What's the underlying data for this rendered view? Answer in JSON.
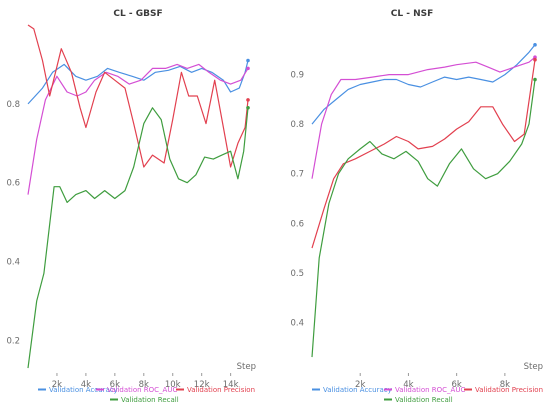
{
  "chart_data": [
    {
      "type": "line",
      "title": "CL - GBSF",
      "xlabel": "Step",
      "ylabel": "",
      "xlim": [
        0,
        15200
      ],
      "ylim": [
        0.12,
        1.0
      ],
      "xticks": [
        2000,
        4000,
        6000,
        8000,
        10000,
        12000,
        14000
      ],
      "xtick_labels": [
        "2k",
        "4k",
        "6k",
        "8k",
        "10k",
        "12k",
        "14k"
      ],
      "yticks": [
        0.2,
        0.4,
        0.6,
        0.8
      ],
      "ytick_labels": [
        "0.2",
        "0.4",
        "0.6",
        "0.8"
      ],
      "grid": false,
      "legend_position": "bottom",
      "series": [
        {
          "name": "Validation Accuracy",
          "color": "#4a90e2",
          "points": [
            [
              0,
              0.8
            ],
            [
              1000,
              0.84
            ],
            [
              1700,
              0.88
            ],
            [
              2500,
              0.9
            ],
            [
              3300,
              0.87
            ],
            [
              4000,
              0.86
            ],
            [
              4800,
              0.87
            ],
            [
              5500,
              0.89
            ],
            [
              6300,
              0.88
            ],
            [
              7200,
              0.87
            ],
            [
              8000,
              0.86
            ],
            [
              8800,
              0.88
            ],
            [
              9700,
              0.885
            ],
            [
              10500,
              0.895
            ],
            [
              11300,
              0.88
            ],
            [
              12000,
              0.89
            ],
            [
              12700,
              0.88
            ],
            [
              13500,
              0.86
            ],
            [
              14000,
              0.83
            ],
            [
              14600,
              0.84
            ],
            [
              15000,
              0.88
            ],
            [
              15200,
              0.91
            ]
          ]
        },
        {
          "name": "Validation ROC_AUC",
          "color": "#d44fd4",
          "points": [
            [
              0,
              0.57
            ],
            [
              600,
              0.71
            ],
            [
              1200,
              0.81
            ],
            [
              2000,
              0.87
            ],
            [
              2700,
              0.83
            ],
            [
              3400,
              0.82
            ],
            [
              4000,
              0.83
            ],
            [
              4600,
              0.86
            ],
            [
              5400,
              0.88
            ],
            [
              6200,
              0.87
            ],
            [
              7000,
              0.85
            ],
            [
              7800,
              0.86
            ],
            [
              8600,
              0.89
            ],
            [
              9500,
              0.89
            ],
            [
              10300,
              0.9
            ],
            [
              11000,
              0.89
            ],
            [
              11800,
              0.9
            ],
            [
              12500,
              0.88
            ],
            [
              13300,
              0.86
            ],
            [
              14000,
              0.85
            ],
            [
              14700,
              0.86
            ],
            [
              15200,
              0.89
            ]
          ]
        },
        {
          "name": "Validation Precision",
          "color": "#e2404f",
          "points": [
            [
              0,
              1.0
            ],
            [
              400,
              0.99
            ],
            [
              1000,
              0.91
            ],
            [
              1500,
              0.82
            ],
            [
              2300,
              0.94
            ],
            [
              3000,
              0.88
            ],
            [
              3600,
              0.79
            ],
            [
              4000,
              0.74
            ],
            [
              4700,
              0.83
            ],
            [
              5300,
              0.88
            ],
            [
              6000,
              0.86
            ],
            [
              6700,
              0.84
            ],
            [
              7300,
              0.75
            ],
            [
              8000,
              0.64
            ],
            [
              8600,
              0.67
            ],
            [
              9400,
              0.65
            ],
            [
              10000,
              0.76
            ],
            [
              10600,
              0.88
            ],
            [
              11100,
              0.82
            ],
            [
              11700,
              0.82
            ],
            [
              12300,
              0.75
            ],
            [
              12900,
              0.86
            ],
            [
              13500,
              0.74
            ],
            [
              14000,
              0.64
            ],
            [
              14500,
              0.7
            ],
            [
              15000,
              0.74
            ],
            [
              15200,
              0.81
            ]
          ]
        },
        {
          "name": "Validation Recall",
          "color": "#3f9d3f",
          "points": [
            [
              0,
              0.13
            ],
            [
              600,
              0.3
            ],
            [
              1100,
              0.37
            ],
            [
              1800,
              0.59
            ],
            [
              2200,
              0.59
            ],
            [
              2700,
              0.55
            ],
            [
              3300,
              0.57
            ],
            [
              4000,
              0.58
            ],
            [
              4600,
              0.56
            ],
            [
              5300,
              0.58
            ],
            [
              6000,
              0.56
            ],
            [
              6700,
              0.58
            ],
            [
              7300,
              0.64
            ],
            [
              8000,
              0.75
            ],
            [
              8600,
              0.79
            ],
            [
              9200,
              0.76
            ],
            [
              9800,
              0.66
            ],
            [
              10400,
              0.61
            ],
            [
              11000,
              0.6
            ],
            [
              11600,
              0.62
            ],
            [
              12200,
              0.665
            ],
            [
              12800,
              0.66
            ],
            [
              13400,
              0.67
            ],
            [
              14000,
              0.68
            ],
            [
              14500,
              0.61
            ],
            [
              14900,
              0.68
            ],
            [
              15200,
              0.79
            ]
          ]
        }
      ]
    },
    {
      "type": "line",
      "title": "CL - NSF",
      "xlabel": "Step",
      "ylabel": "",
      "xlim": [
        0,
        9250
      ],
      "ylim": [
        0.3,
        1.0
      ],
      "xticks": [
        2000,
        4000,
        6000,
        8000
      ],
      "xtick_labels": [
        "2k",
        "4k",
        "6k",
        "8k"
      ],
      "yticks": [
        0.4,
        0.5,
        0.6,
        0.7,
        0.8,
        0.9
      ],
      "ytick_labels": [
        "0.4",
        "0.5",
        "0.6",
        "0.7",
        "0.8",
        "0.9"
      ],
      "grid": false,
      "legend_position": "bottom",
      "series": [
        {
          "name": "Validation Accuracy",
          "color": "#4a90e2",
          "points": [
            [
              0,
              0.8
            ],
            [
              500,
              0.83
            ],
            [
              1000,
              0.85
            ],
            [
              1500,
              0.87
            ],
            [
              2000,
              0.88
            ],
            [
              2500,
              0.885
            ],
            [
              3000,
              0.89
            ],
            [
              3500,
              0.89
            ],
            [
              4000,
              0.88
            ],
            [
              4500,
              0.875
            ],
            [
              5000,
              0.885
            ],
            [
              5500,
              0.895
            ],
            [
              6000,
              0.89
            ],
            [
              6500,
              0.895
            ],
            [
              7000,
              0.89
            ],
            [
              7500,
              0.885
            ],
            [
              8000,
              0.9
            ],
            [
              8500,
              0.92
            ],
            [
              9000,
              0.945
            ],
            [
              9250,
              0.96
            ]
          ]
        },
        {
          "name": "Validation ROC_AUC",
          "color": "#d44fd4",
          "points": [
            [
              0,
              0.69
            ],
            [
              400,
              0.8
            ],
            [
              800,
              0.86
            ],
            [
              1200,
              0.89
            ],
            [
              1800,
              0.89
            ],
            [
              2500,
              0.895
            ],
            [
              3200,
              0.9
            ],
            [
              4000,
              0.9
            ],
            [
              4800,
              0.91
            ],
            [
              5500,
              0.915
            ],
            [
              6000,
              0.92
            ],
            [
              6800,
              0.925
            ],
            [
              7300,
              0.915
            ],
            [
              7800,
              0.905
            ],
            [
              8400,
              0.915
            ],
            [
              9000,
              0.925
            ],
            [
              9250,
              0.935
            ]
          ]
        },
        {
          "name": "Validation Precision",
          "color": "#e2404f",
          "points": [
            [
              0,
              0.55
            ],
            [
              500,
              0.63
            ],
            [
              900,
              0.69
            ],
            [
              1300,
              0.72
            ],
            [
              1800,
              0.73
            ],
            [
              2400,
              0.745
            ],
            [
              3000,
              0.76
            ],
            [
              3500,
              0.775
            ],
            [
              4000,
              0.765
            ],
            [
              4400,
              0.75
            ],
            [
              5000,
              0.755
            ],
            [
              5500,
              0.77
            ],
            [
              6000,
              0.79
            ],
            [
              6500,
              0.805
            ],
            [
              7000,
              0.835
            ],
            [
              7500,
              0.835
            ],
            [
              7900,
              0.8
            ],
            [
              8400,
              0.765
            ],
            [
              8800,
              0.78
            ],
            [
              9250,
              0.93
            ]
          ]
        },
        {
          "name": "Validation Recall",
          "color": "#3f9d3f",
          "points": [
            [
              0,
              0.33
            ],
            [
              300,
              0.53
            ],
            [
              700,
              0.64
            ],
            [
              1100,
              0.7
            ],
            [
              1500,
              0.73
            ],
            [
              2000,
              0.75
            ],
            [
              2400,
              0.765
            ],
            [
              2900,
              0.74
            ],
            [
              3400,
              0.73
            ],
            [
              3900,
              0.745
            ],
            [
              4400,
              0.725
            ],
            [
              4800,
              0.69
            ],
            [
              5200,
              0.675
            ],
            [
              5700,
              0.72
            ],
            [
              6200,
              0.75
            ],
            [
              6700,
              0.71
            ],
            [
              7200,
              0.69
            ],
            [
              7700,
              0.7
            ],
            [
              8200,
              0.725
            ],
            [
              8700,
              0.76
            ],
            [
              9000,
              0.8
            ],
            [
              9250,
              0.89
            ]
          ]
        }
      ]
    }
  ]
}
